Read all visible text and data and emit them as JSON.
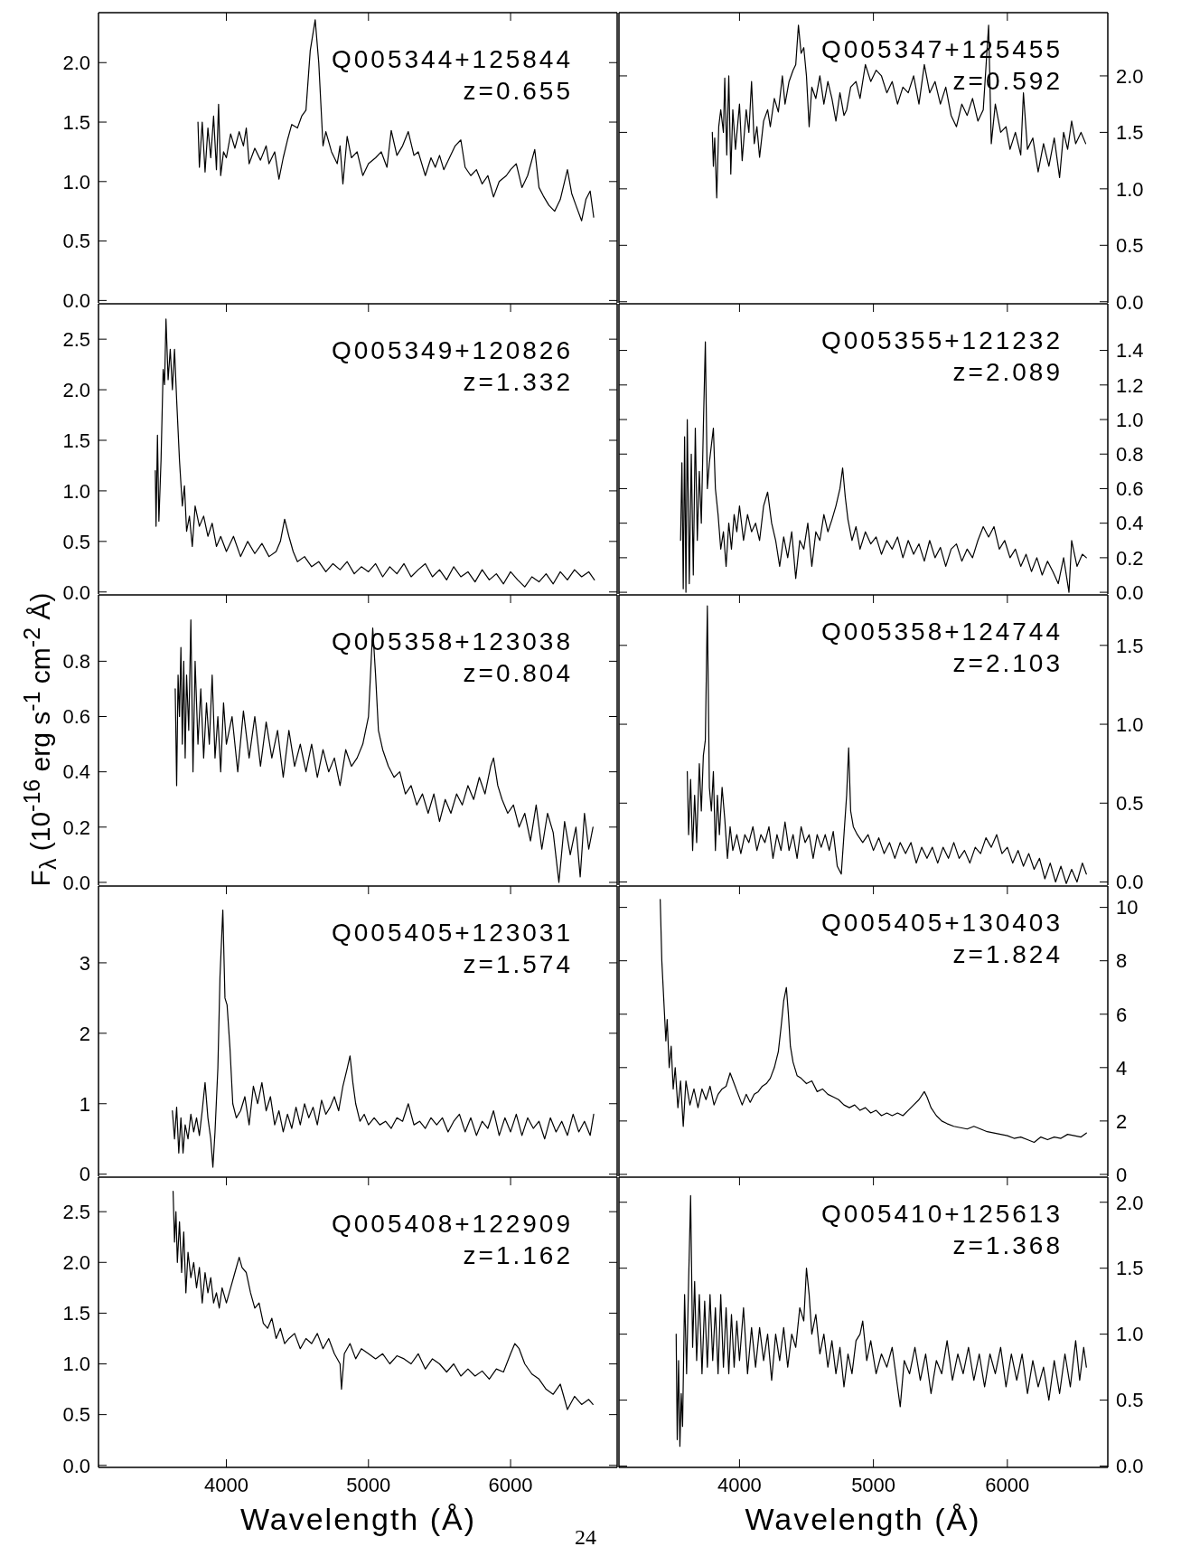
{
  "chart_data": [
    {
      "type": "line",
      "annotations": [
        "Q005344+125844",
        "z=0.655"
      ],
      "color": "#000000",
      "xlim": [
        3100,
        6750
      ],
      "xticks": [
        4000,
        5000,
        6000
      ],
      "ylim": [
        -0.02,
        2.42
      ],
      "yticks": [
        {
          "value": 0,
          "label": "0.0"
        },
        0.5,
        {
          "value": 1,
          "label": "1.0"
        },
        1.5,
        {
          "value": 2,
          "label": "2.0"
        }
      ],
      "tick_labels": "y",
      "x": [
        3800,
        3810,
        3830,
        3850,
        3870,
        3890,
        3910,
        3930,
        3945,
        3960,
        3980,
        4000,
        4030,
        4060,
        4090,
        4120,
        4140,
        4160,
        4200,
        4240,
        4280,
        4300,
        4340,
        4370,
        4400,
        4430,
        4460,
        4500,
        4530,
        4560,
        4590,
        4625,
        4650,
        4665,
        4680,
        4700,
        4740,
        4780,
        4800,
        4820,
        4850,
        4880,
        4920,
        4960,
        5000,
        5050,
        5090,
        5130,
        5160,
        5200,
        5240,
        5280,
        5320,
        5350,
        5400,
        5440,
        5470,
        5500,
        5530,
        5570,
        5610,
        5650,
        5680,
        5720,
        5760,
        5800,
        5840,
        5880,
        5920,
        5970,
        6000,
        6040,
        6080,
        6120,
        6170,
        6200,
        6230,
        6270,
        6310,
        6350,
        6400,
        6430,
        6460,
        6500,
        6530,
        6560,
        6585
      ],
      "values": [
        1.5,
        1.12,
        1.5,
        1.08,
        1.45,
        1.2,
        1.55,
        1.1,
        1.65,
        1.05,
        1.25,
        1.2,
        1.4,
        1.28,
        1.42,
        1.3,
        1.45,
        1.15,
        1.28,
        1.18,
        1.3,
        1.15,
        1.25,
        1.02,
        1.2,
        1.35,
        1.48,
        1.45,
        1.55,
        1.6,
        2.1,
        2.36,
        2.0,
        1.65,
        1.3,
        1.42,
        1.25,
        1.15,
        1.3,
        0.98,
        1.38,
        1.2,
        1.25,
        1.05,
        1.15,
        1.2,
        1.25,
        1.12,
        1.43,
        1.22,
        1.3,
        1.42,
        1.22,
        1.25,
        1.05,
        1.2,
        1.12,
        1.22,
        1.1,
        1.2,
        1.3,
        1.35,
        1.12,
        1.05,
        1.1,
        0.98,
        1.05,
        0.87,
        1.0,
        1.05,
        1.1,
        1.15,
        0.95,
        1.05,
        1.27,
        0.95,
        0.88,
        0.8,
        0.75,
        0.85,
        1.1,
        0.9,
        0.8,
        0.67,
        0.85,
        0.92,
        0.7
      ]
    },
    {
      "type": "line",
      "annotations": [
        "Q005347+125455",
        "z=0.592"
      ],
      "color": "#000000",
      "xlim": [
        3100,
        6750
      ],
      "xticks": [
        4000,
        5000,
        6000
      ],
      "ylim": [
        -0.01,
        2.56
      ],
      "yticks": [
        {
          "value": 0,
          "label": "0.0"
        },
        0.5,
        {
          "value": 1,
          "label": "1.0"
        },
        1.5,
        {
          "value": 2,
          "label": "2.0"
        }
      ],
      "tick_labels": "y",
      "x": [
        3797,
        3805,
        3815,
        3830,
        3845,
        3860,
        3880,
        3890,
        3905,
        3920,
        3935,
        3950,
        3970,
        4000,
        4020,
        4050,
        4070,
        4090,
        4110,
        4130,
        4150,
        4180,
        4210,
        4230,
        4260,
        4290,
        4320,
        4340,
        4370,
        4400,
        4420,
        4440,
        4460,
        4480,
        4500,
        4520,
        4540,
        4570,
        4600,
        4630,
        4660,
        4690,
        4720,
        4750,
        4780,
        4800,
        4830,
        4870,
        4900,
        4940,
        4980,
        5020,
        5060,
        5100,
        5140,
        5180,
        5220,
        5260,
        5300,
        5340,
        5380,
        5420,
        5460,
        5500,
        5540,
        5580,
        5620,
        5660,
        5700,
        5740,
        5780,
        5820,
        5860,
        5880,
        5910,
        5950,
        5990,
        6020,
        6060,
        6100,
        6120,
        6150,
        6190,
        6230,
        6270,
        6310,
        6350,
        6390,
        6420,
        6450,
        6480,
        6510,
        6550,
        6585
      ],
      "values": [
        1.5,
        1.2,
        1.45,
        0.92,
        1.55,
        1.7,
        1.5,
        1.98,
        1.3,
        2.0,
        1.13,
        1.7,
        1.35,
        1.75,
        1.25,
        1.7,
        1.5,
        1.95,
        1.4,
        1.55,
        1.28,
        1.6,
        1.7,
        1.55,
        1.8,
        1.68,
        2.0,
        1.75,
        1.95,
        2.05,
        2.1,
        2.45,
        2.2,
        2.25,
        2.0,
        1.55,
        1.9,
        1.8,
        2.0,
        1.75,
        1.95,
        1.8,
        1.6,
        1.85,
        1.65,
        1.7,
        1.9,
        1.95,
        1.8,
        2.1,
        1.95,
        2.05,
        2.0,
        1.85,
        1.95,
        1.75,
        1.9,
        1.85,
        2.0,
        1.75,
        2.1,
        1.85,
        1.95,
        1.75,
        1.9,
        1.65,
        1.55,
        1.75,
        1.65,
        1.8,
        1.6,
        1.7,
        2.45,
        1.4,
        1.75,
        1.5,
        1.55,
        1.35,
        1.5,
        1.3,
        1.85,
        1.35,
        1.45,
        1.15,
        1.4,
        1.2,
        1.45,
        1.1,
        1.5,
        1.35,
        1.6,
        1.4,
        1.5,
        1.4
      ]
    },
    {
      "type": "line",
      "annotations": [
        "Q005349+120826",
        "z=1.332"
      ],
      "color": "#000000",
      "xlim": [
        3100,
        6750
      ],
      "xticks": [
        4000,
        5000,
        6000
      ],
      "ylim": [
        -0.02,
        2.85
      ],
      "yticks": [
        {
          "value": 0,
          "label": "0.0"
        },
        0.5,
        {
          "value": 1,
          "label": "1.0"
        },
        1.5,
        {
          "value": 2,
          "label": "2.0"
        },
        2.5
      ],
      "tick_labels": "y",
      "x": [
        3500,
        3505,
        3515,
        3525,
        3540,
        3555,
        3565,
        3575,
        3590,
        3605,
        3620,
        3635,
        3650,
        3670,
        3690,
        3705,
        3720,
        3740,
        3760,
        3780,
        3810,
        3840,
        3870,
        3900,
        3930,
        3960,
        4000,
        4050,
        4100,
        4150,
        4200,
        4250,
        4300,
        4350,
        4380,
        4410,
        4440,
        4470,
        4500,
        4550,
        4600,
        4650,
        4700,
        4750,
        4800,
        4850,
        4900,
        4950,
        5000,
        5050,
        5100,
        5150,
        5200,
        5250,
        5300,
        5350,
        5400,
        5450,
        5500,
        5550,
        5600,
        5650,
        5700,
        5750,
        5800,
        5850,
        5900,
        5950,
        6000,
        6050,
        6100,
        6150,
        6200,
        6250,
        6300,
        6350,
        6400,
        6450,
        6500,
        6550,
        6590
      ],
      "values": [
        1.2,
        0.65,
        1.55,
        0.7,
        1.3,
        2.2,
        2.05,
        2.7,
        2.1,
        2.4,
        2.0,
        2.4,
        1.9,
        1.3,
        0.85,
        1.05,
        0.6,
        0.75,
        0.45,
        0.85,
        0.65,
        0.75,
        0.55,
        0.68,
        0.45,
        0.55,
        0.4,
        0.55,
        0.35,
        0.5,
        0.38,
        0.48,
        0.35,
        0.4,
        0.5,
        0.72,
        0.55,
        0.4,
        0.3,
        0.35,
        0.25,
        0.3,
        0.2,
        0.28,
        0.22,
        0.3,
        0.18,
        0.25,
        0.2,
        0.28,
        0.15,
        0.25,
        0.18,
        0.28,
        0.15,
        0.22,
        0.28,
        0.15,
        0.22,
        0.12,
        0.25,
        0.15,
        0.2,
        0.1,
        0.22,
        0.12,
        0.18,
        0.08,
        0.2,
        0.12,
        0.05,
        0.15,
        0.1,
        0.18,
        0.08,
        0.2,
        0.12,
        0.22,
        0.15,
        0.2,
        0.12
      ]
    },
    {
      "type": "line",
      "annotations": [
        "Q005355+121232",
        "z=2.089"
      ],
      "color": "#000000",
      "xlim": [
        3100,
        6750
      ],
      "xticks": [
        4000,
        5000,
        6000
      ],
      "ylim": [
        -0.01,
        1.67
      ],
      "yticks": [
        {
          "value": 0,
          "label": "0.0"
        },
        0.2,
        0.4,
        0.6,
        0.8,
        {
          "value": 1,
          "label": "1.0"
        },
        1.2,
        1.4
      ],
      "tick_labels": "y",
      "x": [
        3560,
        3570,
        3580,
        3590,
        3600,
        3610,
        3625,
        3640,
        3655,
        3670,
        3685,
        3700,
        3715,
        3730,
        3745,
        3760,
        3775,
        3790,
        3805,
        3820,
        3840,
        3860,
        3880,
        3900,
        3920,
        3940,
        3960,
        3980,
        4000,
        4030,
        4060,
        4090,
        4120,
        4150,
        4180,
        4210,
        4240,
        4270,
        4300,
        4330,
        4360,
        4390,
        4420,
        4450,
        4480,
        4510,
        4540,
        4570,
        4600,
        4630,
        4660,
        4690,
        4720,
        4750,
        4770,
        4790,
        4810,
        4840,
        4870,
        4900,
        4940,
        4980,
        5020,
        5060,
        5100,
        5140,
        5180,
        5220,
        5260,
        5300,
        5340,
        5380,
        5420,
        5460,
        5500,
        5540,
        5580,
        5620,
        5660,
        5700,
        5740,
        5780,
        5820,
        5860,
        5900,
        5940,
        5980,
        6020,
        6060,
        6100,
        6140,
        6180,
        6220,
        6260,
        6300,
        6340,
        6380,
        6420,
        6460,
        6480,
        6520,
        6560,
        6590
      ],
      "values": [
        0.3,
        0.75,
        0.02,
        0.9,
        0.0,
        1.0,
        0.05,
        0.8,
        0.1,
        0.95,
        0.3,
        0.7,
        0.4,
        0.95,
        1.45,
        0.6,
        0.75,
        0.85,
        0.95,
        0.6,
        0.45,
        0.25,
        0.35,
        0.15,
        0.4,
        0.25,
        0.45,
        0.35,
        0.5,
        0.3,
        0.45,
        0.35,
        0.4,
        0.3,
        0.5,
        0.58,
        0.4,
        0.3,
        0.15,
        0.32,
        0.2,
        0.35,
        0.08,
        0.3,
        0.25,
        0.4,
        0.15,
        0.35,
        0.3,
        0.45,
        0.35,
        0.42,
        0.5,
        0.6,
        0.72,
        0.55,
        0.42,
        0.3,
        0.38,
        0.25,
        0.35,
        0.28,
        0.32,
        0.22,
        0.3,
        0.25,
        0.32,
        0.2,
        0.3,
        0.22,
        0.28,
        0.18,
        0.3,
        0.2,
        0.26,
        0.15,
        0.25,
        0.28,
        0.18,
        0.25,
        0.2,
        0.3,
        0.38,
        0.32,
        0.38,
        0.25,
        0.3,
        0.2,
        0.25,
        0.15,
        0.22,
        0.12,
        0.2,
        0.1,
        0.18,
        0.12,
        0.05,
        0.2,
        0.0,
        0.3,
        0.15,
        0.22,
        0.2
      ]
    },
    {
      "type": "line",
      "annotations": [
        "Q005358+123038",
        "z=0.804"
      ],
      "ylabel": "F$_{λ}$ (10$^{-16}$ erg s$^{-1}$ cm$^{-2}$ Å)",
      "color": "#000000",
      "xlim": [
        3100,
        6750
      ],
      "xticks": [
        4000,
        5000,
        6000
      ],
      "ylim": [
        -0.01,
        1.04
      ],
      "yticks": [
        {
          "value": 0,
          "label": "0.0"
        },
        0.2,
        0.4,
        0.6,
        0.8
      ],
      "tick_labels": "y",
      "x": [
        3640,
        3650,
        3660,
        3670,
        3680,
        3690,
        3700,
        3710,
        3720,
        3735,
        3750,
        3765,
        3780,
        3800,
        3820,
        3840,
        3860,
        3880,
        3900,
        3920,
        3940,
        3960,
        3980,
        4000,
        4040,
        4080,
        4120,
        4160,
        4200,
        4240,
        4280,
        4320,
        4360,
        4400,
        4440,
        4480,
        4520,
        4560,
        4600,
        4640,
        4680,
        4720,
        4760,
        4800,
        4840,
        4880,
        4920,
        4960,
        5000,
        5030,
        5050,
        5070,
        5100,
        5140,
        5180,
        5220,
        5260,
        5300,
        5340,
        5380,
        5420,
        5460,
        5500,
        5540,
        5580,
        5620,
        5660,
        5700,
        5740,
        5780,
        5820,
        5860,
        5880,
        5910,
        5940,
        5980,
        6020,
        6060,
        6100,
        6140,
        6180,
        6220,
        6260,
        6300,
        6340,
        6380,
        6420,
        6460,
        6490,
        6520,
        6550,
        6580
      ],
      "values": [
        0.7,
        0.35,
        0.75,
        0.6,
        0.85,
        0.5,
        0.8,
        0.45,
        0.75,
        0.55,
        0.95,
        0.4,
        0.8,
        0.5,
        0.7,
        0.45,
        0.65,
        0.5,
        0.75,
        0.45,
        0.6,
        0.4,
        0.65,
        0.5,
        0.6,
        0.4,
        0.62,
        0.45,
        0.6,
        0.42,
        0.58,
        0.45,
        0.55,
        0.38,
        0.55,
        0.42,
        0.5,
        0.4,
        0.5,
        0.38,
        0.48,
        0.4,
        0.45,
        0.35,
        0.48,
        0.42,
        0.45,
        0.5,
        0.6,
        0.92,
        0.75,
        0.55,
        0.48,
        0.42,
        0.38,
        0.4,
        0.32,
        0.35,
        0.28,
        0.32,
        0.25,
        0.32,
        0.22,
        0.3,
        0.25,
        0.32,
        0.28,
        0.35,
        0.3,
        0.38,
        0.32,
        0.42,
        0.45,
        0.35,
        0.3,
        0.25,
        0.28,
        0.2,
        0.25,
        0.15,
        0.28,
        0.12,
        0.25,
        0.18,
        0.0,
        0.22,
        0.1,
        0.2,
        0.02,
        0.25,
        0.12,
        0.2
      ]
    },
    {
      "type": "line",
      "annotations": [
        "Q005358+124744",
        "z=2.103"
      ],
      "color": "#000000",
      "xlim": [
        3100,
        6750
      ],
      "xticks": [
        4000,
        5000,
        6000
      ],
      "ylim": [
        -0.02,
        1.82
      ],
      "yticks": [
        {
          "value": 0,
          "label": "0.0"
        },
        0.5,
        {
          "value": 1,
          "label": "1.0"
        },
        1.5
      ],
      "tick_labels": "y",
      "x": [
        3610,
        3620,
        3635,
        3650,
        3665,
        3680,
        3700,
        3715,
        3730,
        3745,
        3760,
        3775,
        3790,
        3805,
        3820,
        3835,
        3850,
        3870,
        3890,
        3910,
        3930,
        3950,
        3980,
        4010,
        4040,
        4070,
        4100,
        4130,
        4160,
        4190,
        4220,
        4250,
        4280,
        4310,
        4340,
        4370,
        4400,
        4430,
        4460,
        4490,
        4520,
        4550,
        4580,
        4610,
        4640,
        4670,
        4700,
        4730,
        4760,
        4780,
        4800,
        4815,
        4830,
        4850,
        4880,
        4920,
        4960,
        5000,
        5040,
        5080,
        5120,
        5160,
        5200,
        5240,
        5280,
        5320,
        5360,
        5400,
        5440,
        5480,
        5520,
        5560,
        5600,
        5640,
        5680,
        5720,
        5760,
        5800,
        5840,
        5880,
        5920,
        5960,
        6000,
        6040,
        6080,
        6120,
        6160,
        6200,
        6240,
        6280,
        6320,
        6360,
        6400,
        6440,
        6480,
        6520,
        6560,
        6590
      ],
      "values": [
        0.7,
        0.3,
        0.65,
        0.2,
        0.55,
        0.25,
        0.75,
        0.45,
        0.8,
        0.9,
        1.75,
        0.6,
        0.45,
        0.7,
        0.2,
        0.55,
        0.3,
        0.6,
        0.4,
        0.15,
        0.35,
        0.2,
        0.3,
        0.18,
        0.3,
        0.25,
        0.35,
        0.2,
        0.3,
        0.25,
        0.35,
        0.15,
        0.3,
        0.2,
        0.38,
        0.2,
        0.3,
        0.15,
        0.35,
        0.25,
        0.3,
        0.15,
        0.3,
        0.22,
        0.3,
        0.2,
        0.32,
        0.1,
        0.05,
        0.3,
        0.55,
        0.85,
        0.45,
        0.35,
        0.3,
        0.25,
        0.3,
        0.2,
        0.28,
        0.18,
        0.25,
        0.15,
        0.25,
        0.18,
        0.25,
        0.12,
        0.22,
        0.15,
        0.22,
        0.12,
        0.22,
        0.15,
        0.25,
        0.15,
        0.2,
        0.12,
        0.22,
        0.18,
        0.28,
        0.22,
        0.3,
        0.18,
        0.22,
        0.12,
        0.2,
        0.1,
        0.18,
        0.08,
        0.15,
        0.02,
        0.12,
        0.0,
        0.1,
        -0.01,
        0.08,
        0.0,
        0.12,
        0.05
      ]
    },
    {
      "type": "line",
      "annotations": [
        "Q005405+123031",
        "z=1.574"
      ],
      "color": "#000000",
      "xlim": [
        3100,
        6750
      ],
      "xticks": [
        4000,
        5000,
        6000
      ],
      "ylim": [
        -0.03,
        4.09
      ],
      "yticks": [
        0,
        1,
        2,
        3
      ],
      "tick_labels": "y",
      "x": [
        3620,
        3635,
        3650,
        3665,
        3680,
        3695,
        3710,
        3730,
        3750,
        3770,
        3790,
        3810,
        3830,
        3850,
        3870,
        3890,
        3905,
        3920,
        3940,
        3955,
        3975,
        3990,
        4005,
        4025,
        4045,
        4070,
        4100,
        4130,
        4160,
        4190,
        4220,
        4250,
        4280,
        4310,
        4340,
        4370,
        4400,
        4430,
        4460,
        4490,
        4520,
        4550,
        4580,
        4610,
        4640,
        4670,
        4700,
        4730,
        4760,
        4790,
        4820,
        4850,
        4870,
        4890,
        4910,
        4940,
        4970,
        5000,
        5040,
        5080,
        5120,
        5160,
        5200,
        5240,
        5280,
        5320,
        5360,
        5400,
        5440,
        5480,
        5520,
        5560,
        5600,
        5640,
        5680,
        5720,
        5760,
        5800,
        5840,
        5880,
        5920,
        5960,
        6000,
        6040,
        6080,
        6120,
        6160,
        6200,
        6240,
        6280,
        6320,
        6360,
        6400,
        6440,
        6480,
        6520,
        6560,
        6585
      ],
      "values": [
        0.9,
        0.5,
        0.95,
        0.3,
        0.8,
        0.3,
        0.7,
        0.5,
        0.85,
        0.6,
        0.8,
        0.55,
        0.9,
        1.3,
        0.8,
        0.5,
        0.1,
        0.6,
        1.5,
        2.8,
        3.75,
        2.5,
        2.4,
        1.8,
        1.0,
        0.8,
        0.9,
        1.1,
        0.7,
        1.25,
        1.0,
        1.3,
        0.9,
        1.1,
        0.7,
        0.9,
        0.6,
        0.85,
        0.65,
        0.95,
        0.7,
        1.0,
        0.8,
        0.95,
        0.7,
        1.05,
        0.85,
        0.95,
        1.1,
        0.9,
        1.25,
        1.5,
        1.68,
        1.3,
        1.0,
        0.75,
        0.85,
        0.7,
        0.8,
        0.7,
        0.75,
        0.65,
        0.8,
        0.75,
        1.0,
        0.7,
        0.75,
        0.65,
        0.8,
        0.7,
        0.8,
        0.6,
        0.75,
        0.85,
        0.6,
        0.8,
        0.55,
        0.75,
        0.65,
        0.9,
        0.55,
        0.8,
        0.6,
        0.85,
        0.55,
        0.8,
        0.65,
        0.75,
        0.5,
        0.8,
        0.6,
        0.75,
        0.55,
        0.85,
        0.6,
        0.75,
        0.55,
        0.85
      ]
    },
    {
      "type": "line",
      "annotations": [
        "Q005405+130403",
        "z=1.824"
      ],
      "color": "#000000",
      "xlim": [
        3100,
        6750
      ],
      "xticks": [
        4000,
        5000,
        6000
      ],
      "ylim": [
        -0.07,
        10.8
      ],
      "yticks": [
        0,
        2,
        4,
        6,
        8,
        10
      ],
      "tick_labels": "y",
      "x": [
        3408,
        3420,
        3435,
        3450,
        3460,
        3475,
        3490,
        3505,
        3520,
        3540,
        3560,
        3580,
        3600,
        3630,
        3660,
        3690,
        3720,
        3750,
        3780,
        3810,
        3840,
        3870,
        3900,
        3930,
        3960,
        3990,
        4020,
        4050,
        4080,
        4110,
        4140,
        4170,
        4200,
        4230,
        4260,
        4290,
        4310,
        4330,
        4350,
        4365,
        4380,
        4400,
        4430,
        4460,
        4500,
        4540,
        4580,
        4620,
        4660,
        4700,
        4740,
        4780,
        4820,
        4860,
        4900,
        4940,
        4980,
        5020,
        5060,
        5100,
        5140,
        5180,
        5220,
        5260,
        5300,
        5340,
        5380,
        5400,
        5430,
        5470,
        5510,
        5550,
        5600,
        5650,
        5700,
        5750,
        5800,
        5850,
        5900,
        5950,
        6000,
        6050,
        6100,
        6150,
        6200,
        6250,
        6300,
        6350,
        6400,
        6450,
        6500,
        6550,
        6590
      ],
      "values": [
        10.3,
        8.0,
        6.5,
        5.0,
        5.8,
        4.0,
        4.8,
        3.2,
        4.0,
        2.5,
        3.5,
        1.8,
        3.5,
        2.6,
        3.2,
        2.5,
        3.2,
        2.8,
        3.3,
        2.6,
        3.0,
        3.2,
        3.3,
        3.8,
        3.4,
        3.0,
        2.6,
        3.0,
        2.7,
        3.0,
        3.1,
        3.3,
        3.4,
        3.6,
        4.0,
        4.6,
        5.5,
        6.5,
        7.0,
        6.0,
        4.8,
        4.2,
        3.7,
        3.6,
        3.4,
        3.5,
        3.1,
        3.2,
        3.0,
        2.9,
        2.8,
        2.6,
        2.5,
        2.6,
        2.4,
        2.5,
        2.3,
        2.4,
        2.2,
        2.3,
        2.2,
        2.3,
        2.2,
        2.4,
        2.6,
        2.8,
        3.1,
        2.9,
        2.5,
        2.2,
        2.0,
        1.9,
        1.8,
        1.75,
        1.7,
        1.8,
        1.7,
        1.6,
        1.55,
        1.5,
        1.45,
        1.35,
        1.4,
        1.3,
        1.2,
        1.4,
        1.3,
        1.4,
        1.35,
        1.5,
        1.45,
        1.4,
        1.55
      ]
    },
    {
      "type": "line",
      "annotations": [
        "Q005408+122909",
        "z=1.162",
        "24"
      ],
      "xlabel": "Wavelength (Å)",
      "color": "#000000",
      "xlim": [
        3100,
        6750
      ],
      "xticks": [
        4000,
        5000,
        6000
      ],
      "ylim": [
        -0.02,
        2.84
      ],
      "yticks": [
        {
          "value": 0,
          "label": "0.0"
        },
        0.5,
        {
          "value": 1,
          "label": "1.0"
        },
        1.5,
        {
          "value": 2,
          "label": "2.0"
        },
        2.5
      ],
      "x": [
        3625,
        3635,
        3645,
        3655,
        3670,
        3685,
        3700,
        3715,
        3730,
        3750,
        3770,
        3790,
        3810,
        3830,
        3850,
        3870,
        3890,
        3910,
        3930,
        3950,
        3970,
        4000,
        4030,
        4060,
        4090,
        4110,
        4140,
        4170,
        4200,
        4230,
        4260,
        4290,
        4320,
        4350,
        4380,
        4410,
        4440,
        4480,
        4520,
        4560,
        4600,
        4640,
        4680,
        4720,
        4760,
        4800,
        4810,
        4830,
        4870,
        4910,
        4950,
        5000,
        5050,
        5100,
        5150,
        5200,
        5250,
        5300,
        5350,
        5400,
        5450,
        5500,
        5550,
        5600,
        5650,
        5700,
        5750,
        5800,
        5850,
        5900,
        5950,
        6000,
        6030,
        6060,
        6100,
        6150,
        6200,
        6250,
        6300,
        6350,
        6400,
        6450,
        6500,
        6550,
        6580
      ],
      "values": [
        2.7,
        2.2,
        2.5,
        2.0,
        2.4,
        1.9,
        2.3,
        1.7,
        2.1,
        1.85,
        2.0,
        1.75,
        1.95,
        1.6,
        1.9,
        1.7,
        1.85,
        1.6,
        1.7,
        1.55,
        1.75,
        1.6,
        1.75,
        1.9,
        2.05,
        1.95,
        1.9,
        1.7,
        1.55,
        1.6,
        1.4,
        1.35,
        1.45,
        1.25,
        1.35,
        1.2,
        1.25,
        1.3,
        1.15,
        1.25,
        1.2,
        1.3,
        1.15,
        1.25,
        1.1,
        1.0,
        0.75,
        1.1,
        1.2,
        1.05,
        1.15,
        1.1,
        1.05,
        1.1,
        1.0,
        1.08,
        1.05,
        1.0,
        1.1,
        0.95,
        1.05,
        1.0,
        0.92,
        1.0,
        0.88,
        0.95,
        0.88,
        0.93,
        0.85,
        0.95,
        0.92,
        1.1,
        1.2,
        1.15,
        1.0,
        0.9,
        0.85,
        0.75,
        0.7,
        0.8,
        0.55,
        0.68,
        0.6,
        0.65,
        0.6
      ]
    },
    {
      "type": "line",
      "annotations": [
        "Q005410+125613",
        "z=1.368"
      ],
      "xlabel": "Wavelength (Å)",
      "color": "#000000",
      "xlim": [
        3100,
        6750
      ],
      "xticks": [
        4000,
        5000,
        6000
      ],
      "ylim": [
        -0.01,
        2.19
      ],
      "yticks": [
        {
          "value": 0,
          "label": "0.0"
        },
        0.5,
        {
          "value": 1,
          "label": "1.0"
        },
        1.5,
        {
          "value": 2,
          "label": "2.0"
        }
      ],
      "x": [
        3527,
        3535,
        3545,
        3555,
        3565,
        3575,
        3590,
        3605,
        3620,
        3635,
        3650,
        3665,
        3680,
        3700,
        3720,
        3740,
        3760,
        3780,
        3800,
        3820,
        3840,
        3860,
        3880,
        3900,
        3920,
        3940,
        3960,
        3980,
        4000,
        4030,
        4060,
        4090,
        4120,
        4150,
        4180,
        4210,
        4240,
        4270,
        4300,
        4330,
        4360,
        4390,
        4420,
        4450,
        4480,
        4500,
        4520,
        4540,
        4570,
        4600,
        4630,
        4660,
        4690,
        4720,
        4750,
        4780,
        4810,
        4840,
        4870,
        4900,
        4920,
        4950,
        4980,
        5020,
        5060,
        5100,
        5140,
        5180,
        5200,
        5230,
        5270,
        5310,
        5350,
        5390,
        5430,
        5470,
        5510,
        5550,
        5590,
        5630,
        5670,
        5710,
        5750,
        5790,
        5830,
        5870,
        5910,
        5950,
        5990,
        6030,
        6070,
        6110,
        6150,
        6190,
        6230,
        6270,
        6310,
        6350,
        6390,
        6430,
        6470,
        6510,
        6540,
        6570,
        6590
      ],
      "values": [
        1.0,
        0.2,
        0.8,
        0.15,
        0.55,
        0.3,
        1.3,
        0.7,
        1.4,
        2.05,
        0.9,
        1.4,
        0.8,
        1.3,
        0.7,
        1.25,
        0.75,
        1.3,
        0.8,
        1.2,
        0.7,
        1.3,
        0.75,
        1.2,
        0.7,
        1.15,
        0.75,
        1.1,
        0.8,
        1.2,
        0.7,
        1.05,
        0.75,
        1.05,
        0.8,
        1.0,
        0.65,
        1.0,
        0.8,
        1.05,
        0.75,
        1.0,
        0.9,
        1.2,
        1.1,
        1.5,
        1.3,
        1.0,
        1.15,
        0.85,
        1.0,
        0.75,
        0.95,
        0.7,
        0.9,
        0.6,
        0.85,
        0.7,
        0.95,
        1.0,
        1.1,
        0.8,
        0.95,
        0.7,
        0.85,
        0.75,
        0.9,
        0.6,
        0.45,
        0.8,
        0.7,
        0.9,
        0.65,
        0.85,
        0.55,
        0.8,
        0.7,
        0.95,
        0.65,
        0.85,
        0.7,
        0.9,
        0.65,
        0.85,
        0.6,
        0.85,
        0.7,
        0.9,
        0.6,
        0.85,
        0.65,
        0.85,
        0.55,
        0.8,
        0.6,
        0.75,
        0.5,
        0.8,
        0.55,
        0.85,
        0.6,
        0.95,
        0.65,
        0.9,
        0.75
      ]
    }
  ]
}
